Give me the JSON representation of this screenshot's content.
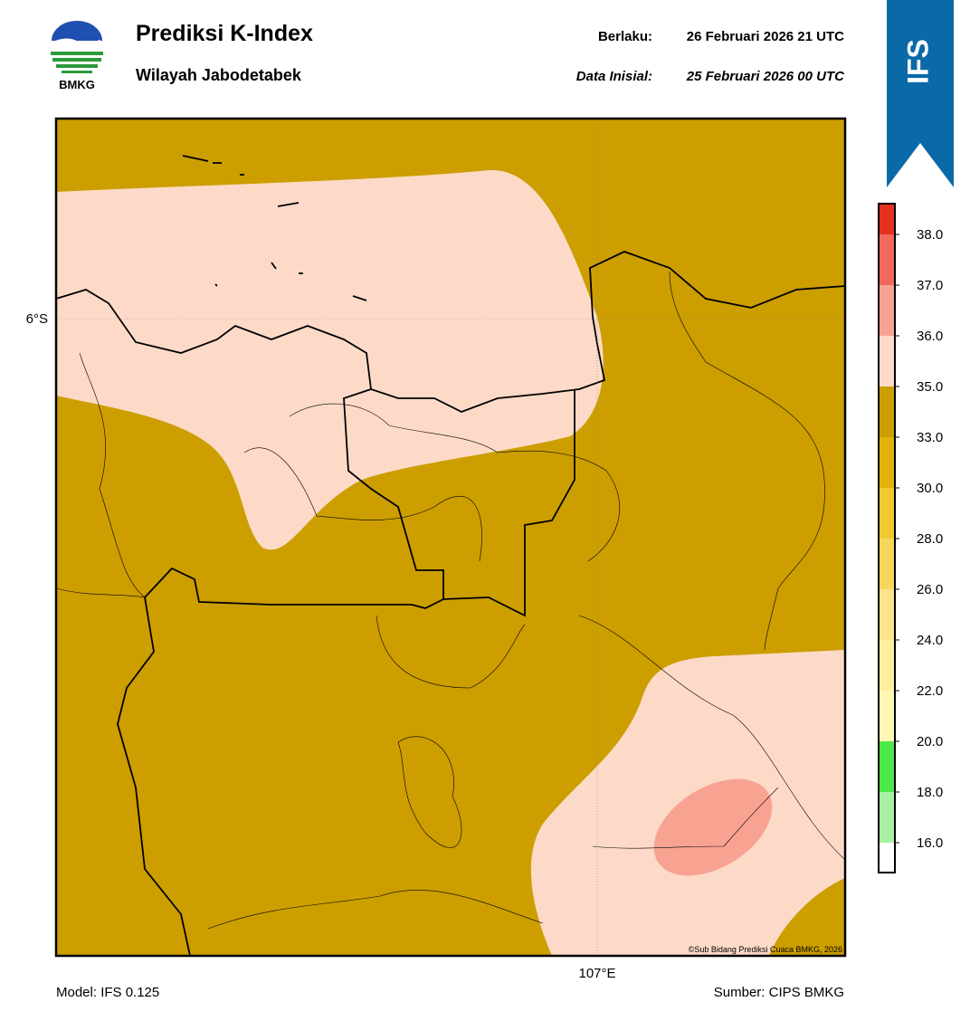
{
  "header": {
    "logo_text": "BMKG",
    "title": "Prediksi K-Index",
    "subtitle": "Wilayah Jabodetabek",
    "valid_label": "Berlaku:",
    "valid_time": "26 Februari 2026 21 UTC",
    "init_label": "Data Inisial:",
    "init_time": "25 Februari 2026 00 UTC",
    "model_badge": "IFS"
  },
  "map": {
    "lat_label": "6°S",
    "lon_label": "107°E",
    "copyright": "©Sub Bidang Prediksi Cuaca BMKG, 2026"
  },
  "colorbar": {
    "labels": [
      "16.0",
      "18.0",
      "20.0",
      "22.0",
      "24.0",
      "26.0",
      "28.0",
      "30.0",
      "33.0",
      "35.0",
      "36.0",
      "37.0",
      "38.0"
    ],
    "colors": [
      "#ffffff",
      "#a6f2a0",
      "#4ee84a",
      "#fff6b4",
      "#ffee9c",
      "#fde38a",
      "#f7d65c",
      "#f1c92e",
      "#e0b20a",
      "#cc9e00",
      "#fddac8",
      "#f8a392",
      "#f2695a",
      "#e4321f"
    ]
  },
  "footer": {
    "model": "Model: IFS 0.125",
    "source": "Sumber: CIPS BMKG"
  }
}
